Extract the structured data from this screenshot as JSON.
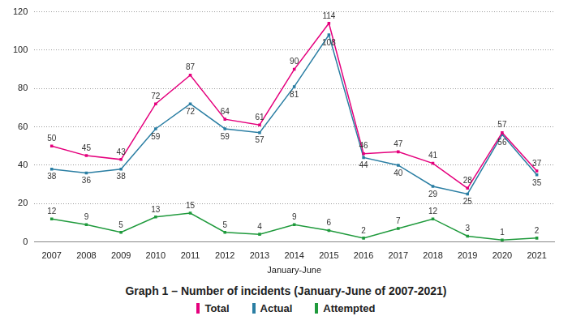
{
  "chart_data": {
    "type": "line",
    "title": "Graph 1 – Number of incidents (January-June of 2007-2021)",
    "x_label": "January-June",
    "categories": [
      "2007",
      "2008",
      "2009",
      "2010",
      "2011",
      "2012",
      "2013",
      "2014",
      "2015",
      "2016",
      "2017",
      "2018",
      "2019",
      "2020",
      "2021"
    ],
    "series": [
      {
        "name": "Total",
        "color": "#e5007d",
        "values": [
          50,
          45,
          43,
          72,
          87,
          64,
          61,
          90,
          114,
          46,
          47,
          41,
          28,
          57,
          37
        ]
      },
      {
        "name": "Actual",
        "color": "#2a7ea3",
        "values": [
          38,
          36,
          38,
          59,
          72,
          59,
          57,
          81,
          108,
          44,
          40,
          29,
          25,
          56,
          35
        ]
      },
      {
        "name": "Attempted",
        "color": "#1f9a3c",
        "values": [
          12,
          9,
          5,
          13,
          15,
          5,
          4,
          9,
          6,
          2,
          7,
          12,
          3,
          1,
          2
        ]
      }
    ],
    "ylim": [
      0,
      120
    ],
    "yticks": [
      0,
      20,
      40,
      60,
      80,
      100,
      120
    ],
    "grid": true,
    "legend": "bottom",
    "data_labels": true
  }
}
